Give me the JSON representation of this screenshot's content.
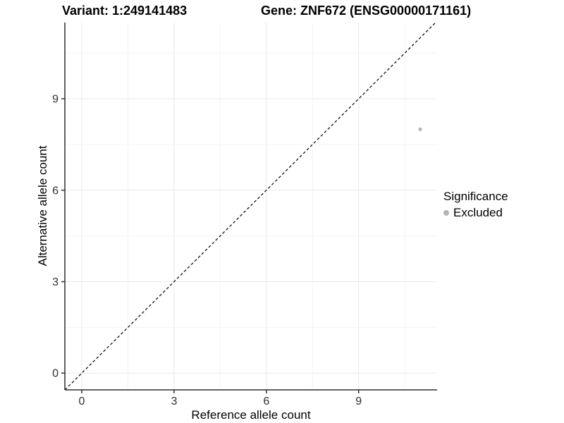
{
  "titles": {
    "variant": "Variant: 1:249141483",
    "gene": "Gene: ZNF672 (ENSG00000171161)"
  },
  "chart_data": {
    "type": "scatter",
    "title_left": "Variant: 1:249141483",
    "title_right": "Gene: ZNF672 (ENSG00000171161)",
    "xlabel": "Reference allele count",
    "ylabel": "Alternative allele count",
    "xlim": [
      -0.55,
      11.55
    ],
    "ylim": [
      -0.55,
      11.5
    ],
    "xticks": [
      0,
      3,
      6,
      9
    ],
    "yticks": [
      0,
      3,
      6,
      9
    ],
    "minor_ticks": [
      1.5,
      4.5,
      7.5,
      10.5
    ],
    "grid": "major and minor, light gray on white panel",
    "points": [
      {
        "x": 11,
        "y": 8,
        "series": "Excluded"
      }
    ],
    "abline": {
      "slope": 1,
      "intercept": 0,
      "style": "dashed",
      "color": "#000000"
    },
    "legend": {
      "title": "Significance",
      "position": "right",
      "items": [
        {
          "label": "Excluded",
          "color": "#b5b5b5"
        }
      ]
    },
    "colors": {
      "point": "#b5b5b5",
      "grid_major": "#e9e9e9",
      "grid_minor": "#f4f4f4",
      "axis": "#2f2f2f",
      "tick_text": "#303030"
    }
  }
}
